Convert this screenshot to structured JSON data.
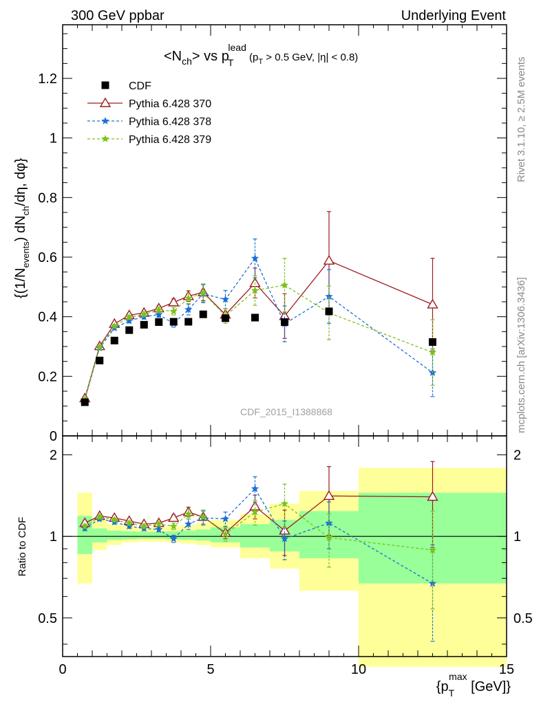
{
  "header": {
    "left": "300 GeV ppbar",
    "right": "Underlying Event"
  },
  "side_labels": {
    "rivet": "Rivet 3.1.10, ≥ 2.5M events",
    "mcplots": "mcplots.cern.ch [arXiv:1306.3436]"
  },
  "watermark": "CDF_2015_I1388868",
  "colors": {
    "cdf": "#000000",
    "p370": "#9b1b1e",
    "p378": "#1a6fd6",
    "p379": "#7ac21a",
    "band_outer": "#ffff99",
    "band_inner": "#99ff99"
  },
  "chart_data": [
    {
      "type": "scatter",
      "panel": "main",
      "title_parts": {
        "a": "<N",
        "a_sub": "ch",
        "b": "> vs p",
        "b_sub": "T",
        "b_sup": "lead",
        "c": " (p",
        "c_sub": "T",
        "d": " > 0.5 GeV, |η| < 0.8)"
      },
      "ylabel_parts": {
        "a": "{(1/N",
        "a_sub": "events",
        "b": ") dN",
        "b_sub": "ch",
        "c": "/dη, dφ}"
      },
      "xlim": [
        0,
        15
      ],
      "ylim": [
        0,
        1.38
      ],
      "yticks": [
        0,
        0.2,
        0.4,
        0.6,
        0.8,
        1,
        1.2
      ],
      "ytick_labels": [
        "0",
        "0.2",
        "0.4",
        "0.6",
        "0.8",
        "1",
        "1.2"
      ],
      "legend_position": "top-left",
      "series": [
        {
          "name": "CDF",
          "color": "#000000",
          "marker": "square",
          "x": [
            0.75,
            1.25,
            1.75,
            2.25,
            2.75,
            3.25,
            3.75,
            4.25,
            4.75,
            5.5,
            6.5,
            7.5,
            9,
            12.5
          ],
          "y": [
            0.113,
            0.253,
            0.32,
            0.355,
            0.373,
            0.382,
            0.383,
            0.383,
            0.408,
            0.395,
            0.397,
            0.382,
            0.418,
            0.315
          ]
        },
        {
          "name": "Pythia 6.428 370",
          "color": "#9b1b1e",
          "marker": "open-triangle",
          "x": [
            0.75,
            1.25,
            1.75,
            2.25,
            2.75,
            3.25,
            3.75,
            4.25,
            4.75,
            5.5,
            6.5,
            7.5,
            9,
            12.5
          ],
          "y": [
            0.126,
            0.301,
            0.376,
            0.405,
            0.413,
            0.428,
            0.448,
            0.469,
            0.482,
            0.407,
            0.513,
            0.402,
            0.588,
            0.441
          ],
          "err": [
            0.004,
            0.006,
            0.006,
            0.007,
            0.008,
            0.009,
            0.012,
            0.018,
            0.028,
            0.02,
            0.05,
            0.075,
            0.165,
            0.155
          ]
        },
        {
          "name": "Pythia 6.428 378",
          "color": "#1a6fd6",
          "marker": "star",
          "style": "dashed",
          "x": [
            0.75,
            1.25,
            1.75,
            2.25,
            2.75,
            3.25,
            3.75,
            4.25,
            4.75,
            5.5,
            6.5,
            7.5,
            9,
            12.5
          ],
          "y": [
            0.121,
            0.295,
            0.362,
            0.386,
            0.4,
            0.407,
            0.377,
            0.424,
            0.477,
            0.458,
            0.596,
            0.376,
            0.468,
            0.212
          ],
          "err": [
            0.004,
            0.006,
            0.006,
            0.007,
            0.008,
            0.009,
            0.012,
            0.018,
            0.03,
            0.03,
            0.065,
            0.06,
            0.09,
            0.08
          ]
        },
        {
          "name": "Pythia 6.428 379",
          "color": "#7ac21a",
          "marker": "star",
          "style": "dashed",
          "x": [
            0.75,
            1.25,
            1.75,
            2.25,
            2.75,
            3.25,
            3.75,
            4.25,
            4.75,
            5.5,
            6.5,
            7.5,
            9,
            12.5
          ],
          "y": [
            0.123,
            0.298,
            0.368,
            0.398,
            0.408,
            0.423,
            0.418,
            0.462,
            0.48,
            0.403,
            0.488,
            0.506,
            0.413,
            0.28
          ],
          "err": [
            0.004,
            0.006,
            0.006,
            0.007,
            0.008,
            0.009,
            0.012,
            0.018,
            0.03,
            0.025,
            0.05,
            0.09,
            0.09,
            0.11
          ]
        }
      ]
    },
    {
      "type": "scatter",
      "panel": "ratio",
      "ylabel": "Ratio to CDF",
      "xlabel_parts": {
        "a": "{p",
        "a_sub": "T",
        "a_sup": "max",
        "b": " [GeV]}"
      },
      "xlim": [
        0,
        15
      ],
      "xticks": [
        0,
        5,
        10,
        15
      ],
      "xtick_labels": [
        "0",
        "5",
        "10",
        "15"
      ],
      "ylim": [
        0.36,
        2.35
      ],
      "yscale": "log",
      "yticks": [
        0.5,
        1,
        2
      ],
      "ytick_labels": [
        "0.5",
        "1",
        "2"
      ],
      "reference": 1,
      "bands": {
        "bins": [
          [
            0.5,
            1
          ],
          [
            1,
            1.5
          ],
          [
            1.5,
            2
          ],
          [
            2,
            2.5
          ],
          [
            2.5,
            3
          ],
          [
            3,
            3.5
          ],
          [
            3.5,
            4
          ],
          [
            4,
            4.5
          ],
          [
            4.5,
            5
          ],
          [
            5,
            6
          ],
          [
            6,
            7
          ],
          [
            7,
            8
          ],
          [
            8,
            10
          ],
          [
            10,
            15
          ]
        ],
        "outer_low": [
          0.67,
          0.89,
          0.93,
          0.95,
          0.955,
          0.955,
          0.95,
          0.94,
          0.93,
          0.91,
          0.83,
          0.76,
          0.63,
          0.33
        ],
        "outer_high": [
          1.45,
          1.16,
          1.11,
          1.09,
          1.08,
          1.08,
          1.09,
          1.1,
          1.12,
          1.15,
          1.21,
          1.32,
          1.47,
          1.79
        ],
        "inner_low": [
          0.86,
          0.95,
          0.97,
          0.975,
          0.98,
          0.98,
          0.975,
          0.97,
          0.965,
          0.95,
          0.91,
          0.88,
          0.83,
          0.67
        ],
        "inner_high": [
          1.19,
          1.07,
          1.05,
          1.045,
          1.04,
          1.04,
          1.045,
          1.05,
          1.06,
          1.08,
          1.11,
          1.15,
          1.24,
          1.45
        ]
      },
      "series": [
        {
          "name": "Pythia 6.428 370",
          "color": "#9b1b1e",
          "marker": "open-triangle",
          "x": [
            0.75,
            1.25,
            1.75,
            2.25,
            2.75,
            3.25,
            3.75,
            4.25,
            4.75,
            5.5,
            6.5,
            7.5,
            9,
            12.5
          ],
          "y": [
            1.12,
            1.19,
            1.17,
            1.14,
            1.11,
            1.12,
            1.17,
            1.23,
            1.18,
            1.03,
            1.29,
            1.05,
            1.41,
            1.4
          ],
          "err": [
            0.02,
            0.02,
            0.02,
            0.02,
            0.02,
            0.02,
            0.03,
            0.05,
            0.07,
            0.05,
            0.13,
            0.2,
            0.4,
            0.49
          ]
        },
        {
          "name": "Pythia 6.428 378",
          "color": "#1a6fd6",
          "marker": "star",
          "style": "dashed",
          "x": [
            0.75,
            1.25,
            1.75,
            2.25,
            2.75,
            3.25,
            3.75,
            4.25,
            4.75,
            5.5,
            6.5,
            7.5,
            9,
            12.5
          ],
          "y": [
            1.07,
            1.16,
            1.13,
            1.09,
            1.07,
            1.06,
            0.98,
            1.11,
            1.17,
            1.16,
            1.5,
            0.98,
            1.12,
            0.67
          ],
          "err": [
            0.02,
            0.02,
            0.02,
            0.02,
            0.02,
            0.02,
            0.03,
            0.05,
            0.07,
            0.07,
            0.16,
            0.16,
            0.22,
            0.26
          ]
        },
        {
          "name": "Pythia 6.428 379",
          "color": "#7ac21a",
          "marker": "star",
          "style": "dashed",
          "x": [
            0.75,
            1.25,
            1.75,
            2.25,
            2.75,
            3.25,
            3.75,
            4.25,
            4.75,
            5.5,
            6.5,
            7.5,
            9,
            12.5
          ],
          "y": [
            1.09,
            1.18,
            1.15,
            1.12,
            1.09,
            1.11,
            1.09,
            1.21,
            1.18,
            1.02,
            1.23,
            1.32,
            0.99,
            0.89
          ],
          "err": [
            0.02,
            0.02,
            0.02,
            0.02,
            0.02,
            0.02,
            0.03,
            0.05,
            0.07,
            0.06,
            0.13,
            0.24,
            0.22,
            0.35
          ]
        }
      ]
    }
  ]
}
